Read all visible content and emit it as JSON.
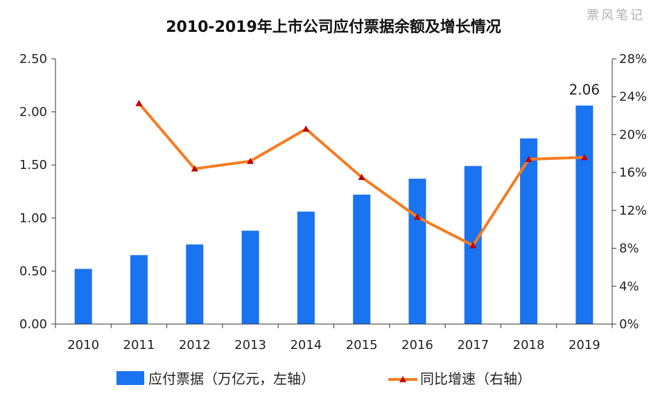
{
  "watermark": "票风笔记",
  "chart_data": {
    "type": "bar+line",
    "title": "2010-2019年上市公司应付票据余额及增长情况",
    "categories": [
      "2010",
      "2011",
      "2012",
      "2013",
      "2014",
      "2015",
      "2016",
      "2017",
      "2018",
      "2019"
    ],
    "series": [
      {
        "name": "应付票据（万亿元，左轴）",
        "type": "bar",
        "axis": "left",
        "color": "#1a73f0",
        "values": [
          0.52,
          0.65,
          0.75,
          0.88,
          1.06,
          1.22,
          1.37,
          1.49,
          1.75,
          2.06
        ]
      },
      {
        "name": "同比增速（右轴）",
        "type": "line",
        "axis": "right",
        "color": "#f57c1f",
        "marker_color": "#c00000",
        "values": [
          null,
          23.3,
          16.4,
          17.2,
          20.6,
          15.5,
          11.3,
          8.3,
          17.4,
          17.6
        ]
      }
    ],
    "y_left": {
      "min": 0,
      "max": 2.5,
      "ticks": [
        "0.00",
        "0.50",
        "1.00",
        "1.50",
        "2.00",
        "2.50"
      ]
    },
    "y_right": {
      "min": 0,
      "max": 28,
      "ticks": [
        "0%",
        "4%",
        "8%",
        "12%",
        "16%",
        "20%",
        "24%",
        "28%"
      ]
    },
    "data_labels": [
      {
        "category": "2019",
        "text": "2.06"
      }
    ],
    "legend": {
      "position": "bottom"
    },
    "grid": false
  }
}
